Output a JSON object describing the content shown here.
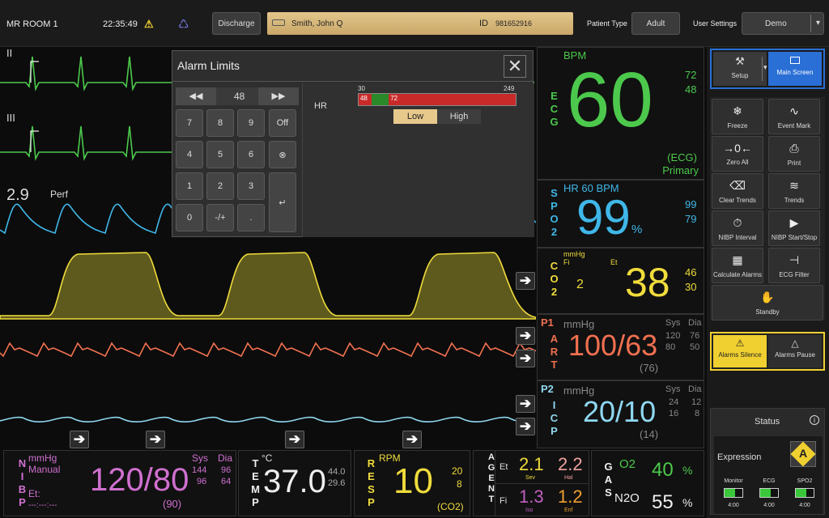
{
  "topbar": {
    "room": "MR ROOM 1",
    "time": "22:35:49",
    "discharge_label": "Discharge",
    "patient_name": "Smith, John Q",
    "id_label": "ID",
    "patient_id": "981652916",
    "patient_type_label": "Patient Type",
    "patient_type_value": "Adult",
    "user_settings_label": "User Settings",
    "user_settings_value": "Demo"
  },
  "waves": {
    "ecg1_label": "II",
    "ecg2_label": "III",
    "perf_value": "2.9",
    "perf_label": "Perf"
  },
  "dialog": {
    "title": "Alarm Limits",
    "display_value": "48",
    "keys": [
      "7",
      "8",
      "9",
      "Off",
      "4",
      "5",
      "6",
      "1",
      "2",
      "3",
      "0",
      "-/+",
      "."
    ],
    "hr_label": "HR",
    "range_min": "30",
    "range_max": "249",
    "low_value": "48",
    "high_value": "72",
    "low_tab": "Low",
    "high_tab": "High"
  },
  "ecg": {
    "label": "ECG",
    "unit": "BPM",
    "value": "60",
    "upper": "72",
    "lower": "48",
    "source": "(ECG)",
    "mode": "Primary"
  },
  "spo2": {
    "label": "SPO2",
    "subtitle": "HR 60 BPM",
    "value": "99",
    "unit": "%",
    "upper": "99",
    "lower": "79"
  },
  "co2": {
    "label": "CO2",
    "unit": "mmHg",
    "fi_label": "Fi",
    "et_label": "Et",
    "fi_value": "2",
    "value": "38",
    "upper": "46",
    "lower": "30"
  },
  "art": {
    "tag": "P1",
    "label": "ART",
    "unit": "mmHg",
    "value": "100/63",
    "mean": "(76)",
    "sys_label": "Sys",
    "dia_label": "Dia",
    "sys_hi": "120",
    "sys_lo": "80",
    "dia_hi": "76",
    "dia_lo": "50"
  },
  "icp": {
    "tag": "P2",
    "label": "ICP",
    "unit": "mmHg",
    "value": "20/10",
    "mean": "(14)",
    "sys_label": "Sys",
    "dia_label": "Dia",
    "sys_hi": "24",
    "sys_lo": "16",
    "dia_hi": "12",
    "dia_lo": "8"
  },
  "sidebar": {
    "setup": "Setup",
    "main_screen": "Main Screen",
    "buttons": [
      "Freeze",
      "Event Mark",
      "Zero All",
      "Print",
      "Clear Trends",
      "Trends",
      "NIBP Interval",
      "NIBP Start/Stop",
      "Calculate Alarms",
      "ECG Filter",
      "Standby"
    ],
    "alarms_silence": "Alarms Silence",
    "alarms_pause": "Alarms Pause"
  },
  "status": {
    "title": "Status",
    "expression_label": "Expression",
    "expression_value": "A",
    "devices": [
      {
        "name": "Monitor",
        "time": "4:00",
        "level": 0.6
      },
      {
        "name": "ECG",
        "time": "4:00",
        "level": 0.6
      },
      {
        "name": "SPO2",
        "time": "4:00",
        "level": 0.6
      }
    ]
  },
  "nibp": {
    "label": "NIBP",
    "unit": "mmHg",
    "mode": "Manual",
    "et_label": "Et:",
    "et_value": "---:---:---",
    "value": "120/80",
    "mean": "(90)",
    "sys_label": "Sys",
    "dia_label": "Dia",
    "sys_hi": "144",
    "sys_lo": "96",
    "dia_hi": "96",
    "dia_lo": "64"
  },
  "temp": {
    "label": "TEMP",
    "unit": "°C",
    "value": "37.0",
    "upper": "44.0",
    "lower": "29.6"
  },
  "resp": {
    "label": "RESP",
    "unit": "RPM",
    "value": "10",
    "upper": "20",
    "lower": "8",
    "source": "(CO2)"
  },
  "agent": {
    "label": "AGENT",
    "et_label": "Et",
    "fi_label": "Fi",
    "sev_et": "2.1",
    "sev_label": "Sev",
    "hal_et": "2.2",
    "hal_label": "Hal",
    "iso_fi": "1.3",
    "iso_label": "Iso",
    "enf_fi": "1.2",
    "enf_label": "Enf"
  },
  "gas": {
    "label": "GAS",
    "o2_label": "O2",
    "o2_value": "40",
    "o2_unit": "%",
    "n2o_label": "N2O",
    "n2o_value": "55",
    "n2o_unit": "%"
  },
  "colors": {
    "ecg": "#4cc94c",
    "spo2": "#3fb7e8",
    "co2": "#f0dc3c",
    "art": "#f07050",
    "icp": "#8fd8f0",
    "nibp": "#d070d0",
    "agent_sev": "#f0dc3c",
    "agent_hal": "#f0a0a0",
    "agent_iso": "#c060c0",
    "agent_enf": "#f0a030",
    "alarm_yellow": "#f0d030"
  }
}
